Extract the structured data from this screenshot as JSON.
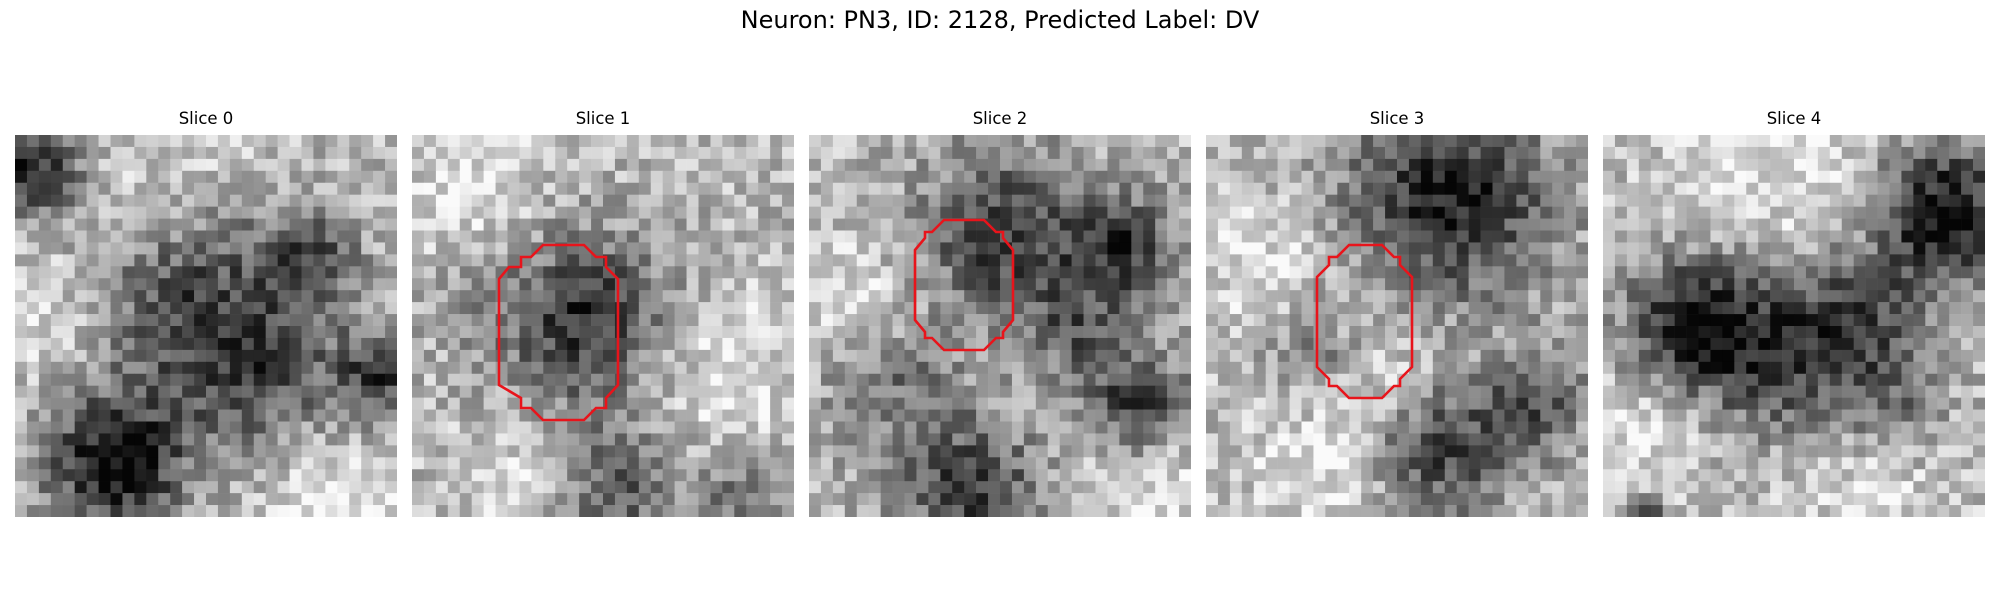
{
  "figure": {
    "title": "Neuron: PN3, ID: 2128, Predicted Label: DV"
  },
  "slices": [
    {
      "title": "Slice 0",
      "contour": false
    },
    {
      "title": "Slice 1",
      "contour": true
    },
    {
      "title": "Slice 2",
      "contour": true
    },
    {
      "title": "Slice 3",
      "contour": true
    },
    {
      "title": "Slice 4",
      "contour": false
    }
  ],
  "contour_color": "#e8141b",
  "colormap": "grayscale"
}
